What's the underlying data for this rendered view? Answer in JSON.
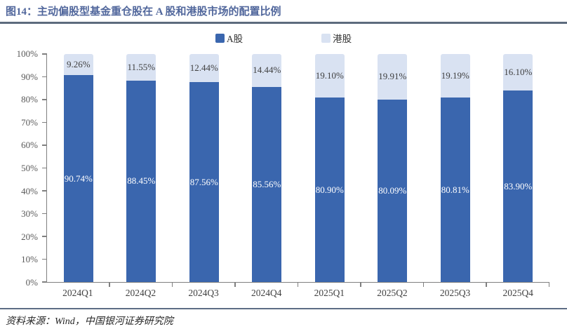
{
  "header": {
    "title": "图14：主动偏股型基金重仓股在 A 股和港股市场的配置比例"
  },
  "legend": {
    "items": [
      {
        "label": "A股",
        "color": "#3A66AE"
      },
      {
        "label": "港股",
        "color": "#D9E2F2"
      }
    ]
  },
  "chart_data": {
    "type": "bar",
    "stacked": true,
    "title": "主动偏股型基金重仓股在 A 股和港股市场的配置比例",
    "categories": [
      "2024Q1",
      "2024Q2",
      "2024Q3",
      "2024Q4",
      "2025Q1",
      "2025Q2",
      "2025Q3",
      "2025Q4"
    ],
    "series": [
      {
        "name": "A股",
        "color": "#3A66AE",
        "text_color": "#FFFFFF",
        "values": [
          90.74,
          88.45,
          87.56,
          85.56,
          80.9,
          80.09,
          80.81,
          83.9
        ],
        "labels": [
          "90.74%",
          "88.45%",
          "87.56%",
          "85.56%",
          "80.90%",
          "80.09%",
          "80.81%",
          "83.90%"
        ]
      },
      {
        "name": "港股",
        "color": "#D9E2F2",
        "text_color": "#404040",
        "values": [
          9.26,
          11.55,
          12.44,
          14.44,
          19.1,
          19.91,
          19.19,
          16.1
        ],
        "labels": [
          "9.26%",
          "11.55%",
          "12.44%",
          "14.44%",
          "19.10%",
          "19.91%",
          "19.19%",
          "16.10%"
        ]
      }
    ],
    "y_ticks": [
      "100%",
      "90%",
      "80%",
      "70%",
      "60%",
      "50%",
      "40%",
      "30%",
      "20%",
      "10%",
      "0%"
    ],
    "ylim": [
      0,
      100
    ],
    "grid": false,
    "legend_position": "top"
  },
  "footer": {
    "source": "资料来源：Wind，中国银河证券研究院"
  }
}
